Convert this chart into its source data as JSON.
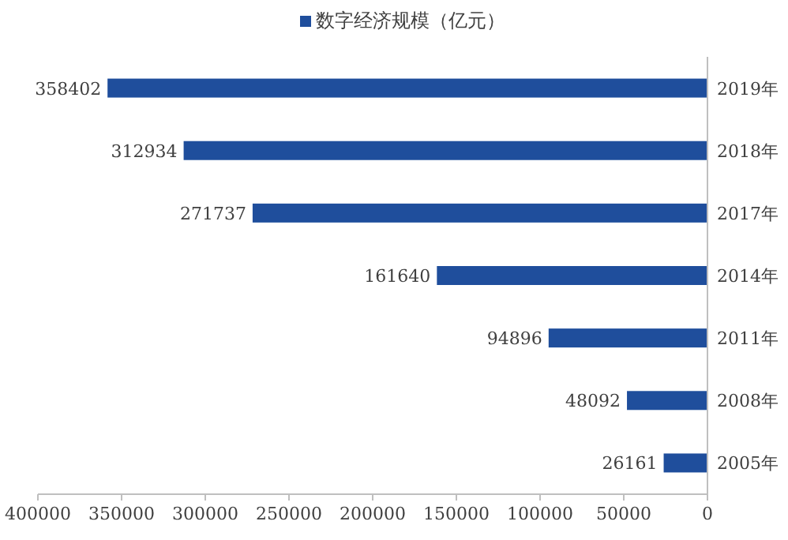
{
  "chart_data": {
    "type": "bar",
    "orientation": "horizontal",
    "legend": "top",
    "data_labels": true,
    "categories": [
      "2019年",
      "2018年",
      "2017年",
      "2014年",
      "2011年",
      "2008年",
      "2005年"
    ],
    "series": [
      {
        "name": "数字经济规模（亿元）",
        "color": "#1f4e9c",
        "values": [
          358402,
          312934,
          271737,
          161640,
          94896,
          48092,
          26161
        ]
      }
    ],
    "xlim": [
      400000,
      0
    ],
    "xticks": [
      400000,
      350000,
      300000,
      250000,
      200000,
      150000,
      100000,
      50000,
      0
    ]
  }
}
